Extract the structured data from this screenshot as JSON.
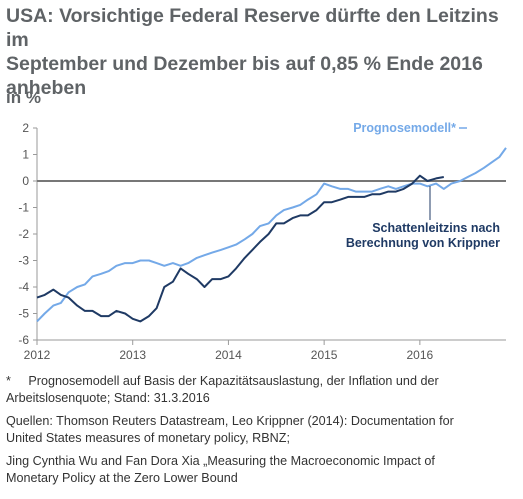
{
  "title_lines": [
    "USA: Vorsichtige Federal Reserve dürfte den Leitzins im",
    "September und Dezember bis auf 0,85 % Ende 2016",
    "anheben"
  ],
  "unit": "in %",
  "chart_data": {
    "type": "line",
    "ylim": [
      -6,
      2
    ],
    "yticks": [
      2,
      1,
      0,
      -1,
      -2,
      -3,
      -4,
      -5,
      -6
    ],
    "xlim": [
      2012.0,
      2016.9
    ],
    "xticks": [
      {
        "value": 2012,
        "label": "2012"
      },
      {
        "value": 2013,
        "label": "2013"
      },
      {
        "value": 2014,
        "label": "2014"
      },
      {
        "value": 2015,
        "label": "2015"
      },
      {
        "value": 2016,
        "label": "2016"
      }
    ],
    "zero_line": true,
    "series": [
      {
        "name": "Prognosemodell*",
        "color": "#74a9e8",
        "points": [
          [
            2012.0,
            -5.3
          ],
          [
            2012.08,
            -5.0
          ],
          [
            2012.17,
            -4.7
          ],
          [
            2012.25,
            -4.6
          ],
          [
            2012.33,
            -4.2
          ],
          [
            2012.42,
            -4.0
          ],
          [
            2012.5,
            -3.9
          ],
          [
            2012.58,
            -3.6
          ],
          [
            2012.67,
            -3.5
          ],
          [
            2012.75,
            -3.4
          ],
          [
            2012.83,
            -3.2
          ],
          [
            2012.92,
            -3.1
          ],
          [
            2013.0,
            -3.1
          ],
          [
            2013.08,
            -3.0
          ],
          [
            2013.17,
            -3.0
          ],
          [
            2013.25,
            -3.1
          ],
          [
            2013.33,
            -3.2
          ],
          [
            2013.42,
            -3.1
          ],
          [
            2013.5,
            -3.2
          ],
          [
            2013.58,
            -3.1
          ],
          [
            2013.67,
            -2.9
          ],
          [
            2013.75,
            -2.8
          ],
          [
            2013.83,
            -2.7
          ],
          [
            2013.92,
            -2.6
          ],
          [
            2014.0,
            -2.5
          ],
          [
            2014.08,
            -2.4
          ],
          [
            2014.17,
            -2.2
          ],
          [
            2014.25,
            -2.0
          ],
          [
            2014.33,
            -1.7
          ],
          [
            2014.42,
            -1.6
          ],
          [
            2014.5,
            -1.3
          ],
          [
            2014.58,
            -1.1
          ],
          [
            2014.67,
            -1.0
          ],
          [
            2014.75,
            -0.9
          ],
          [
            2014.83,
            -0.7
          ],
          [
            2014.92,
            -0.5
          ],
          [
            2015.0,
            -0.1
          ],
          [
            2015.08,
            -0.2
          ],
          [
            2015.17,
            -0.3
          ],
          [
            2015.25,
            -0.3
          ],
          [
            2015.33,
            -0.4
          ],
          [
            2015.42,
            -0.4
          ],
          [
            2015.5,
            -0.4
          ],
          [
            2015.58,
            -0.3
          ],
          [
            2015.67,
            -0.2
          ],
          [
            2015.75,
            -0.3
          ],
          [
            2015.83,
            -0.2
          ],
          [
            2015.92,
            -0.1
          ],
          [
            2016.0,
            -0.1
          ],
          [
            2016.08,
            -0.2
          ],
          [
            2016.17,
            -0.1
          ],
          [
            2016.25,
            -0.3
          ],
          [
            2016.33,
            -0.1
          ],
          [
            2016.42,
            0.0
          ],
          [
            2016.5,
            0.15
          ],
          [
            2016.58,
            0.3
          ],
          [
            2016.67,
            0.5
          ],
          [
            2016.75,
            0.7
          ],
          [
            2016.83,
            0.9
          ],
          [
            2016.9,
            1.25
          ]
        ]
      },
      {
        "name": "Schattenleitzins nach Berechnung von Krippner",
        "color": "#1f3a64",
        "points": [
          [
            2012.0,
            -4.4
          ],
          [
            2012.08,
            -4.3
          ],
          [
            2012.17,
            -4.1
          ],
          [
            2012.25,
            -4.3
          ],
          [
            2012.33,
            -4.4
          ],
          [
            2012.42,
            -4.7
          ],
          [
            2012.5,
            -4.9
          ],
          [
            2012.58,
            -4.9
          ],
          [
            2012.67,
            -5.1
          ],
          [
            2012.75,
            -5.1
          ],
          [
            2012.83,
            -4.9
          ],
          [
            2012.92,
            -5.0
          ],
          [
            2013.0,
            -5.2
          ],
          [
            2013.08,
            -5.3
          ],
          [
            2013.17,
            -5.1
          ],
          [
            2013.25,
            -4.8
          ],
          [
            2013.33,
            -4.0
          ],
          [
            2013.42,
            -3.8
          ],
          [
            2013.5,
            -3.3
          ],
          [
            2013.58,
            -3.5
          ],
          [
            2013.67,
            -3.7
          ],
          [
            2013.75,
            -4.0
          ],
          [
            2013.83,
            -3.7
          ],
          [
            2013.92,
            -3.7
          ],
          [
            2014.0,
            -3.6
          ],
          [
            2014.08,
            -3.3
          ],
          [
            2014.17,
            -2.9
          ],
          [
            2014.25,
            -2.6
          ],
          [
            2014.33,
            -2.3
          ],
          [
            2014.42,
            -2.0
          ],
          [
            2014.5,
            -1.6
          ],
          [
            2014.58,
            -1.6
          ],
          [
            2014.67,
            -1.4
          ],
          [
            2014.75,
            -1.3
          ],
          [
            2014.83,
            -1.3
          ],
          [
            2014.92,
            -1.1
          ],
          [
            2015.0,
            -0.8
          ],
          [
            2015.08,
            -0.8
          ],
          [
            2015.17,
            -0.7
          ],
          [
            2015.25,
            -0.6
          ],
          [
            2015.33,
            -0.6
          ],
          [
            2015.42,
            -0.6
          ],
          [
            2015.5,
            -0.5
          ],
          [
            2015.58,
            -0.5
          ],
          [
            2015.67,
            -0.4
          ],
          [
            2015.75,
            -0.4
          ],
          [
            2015.83,
            -0.3
          ],
          [
            2015.92,
            -0.1
          ],
          [
            2016.0,
            0.2
          ],
          [
            2016.08,
            0.0
          ],
          [
            2016.17,
            0.1
          ],
          [
            2016.25,
            0.15
          ]
        ]
      }
    ],
    "annotations": [
      {
        "text": "Prognosemodell*",
        "series": 0,
        "color": "#74a9e8"
      },
      {
        "text_lines": [
          "Schattenleitzins nach",
          "Berechnung von Krippner"
        ],
        "series": 1,
        "color": "#1f3a64"
      }
    ]
  },
  "footnotes": {
    "note_lines": [
      "*     Prognosemodell auf Basis der Kapazitätsauslastung, der Inflation und der",
      "Arbeitslosenquote; Stand: 31.3.2016"
    ],
    "sources1_lines": [
      "Quellen: Thomson Reuters Datastream, Leo Krippner (2014): Documentation for",
      "United States measures of monetary policy, RBNZ;"
    ],
    "sources2_lines": [
      "Jing Cynthia Wu and Fan Dora Xia „Measuring the Macroeconomic Impact of",
      "Monetary Policy at the Zero Lower Bound"
    ]
  }
}
